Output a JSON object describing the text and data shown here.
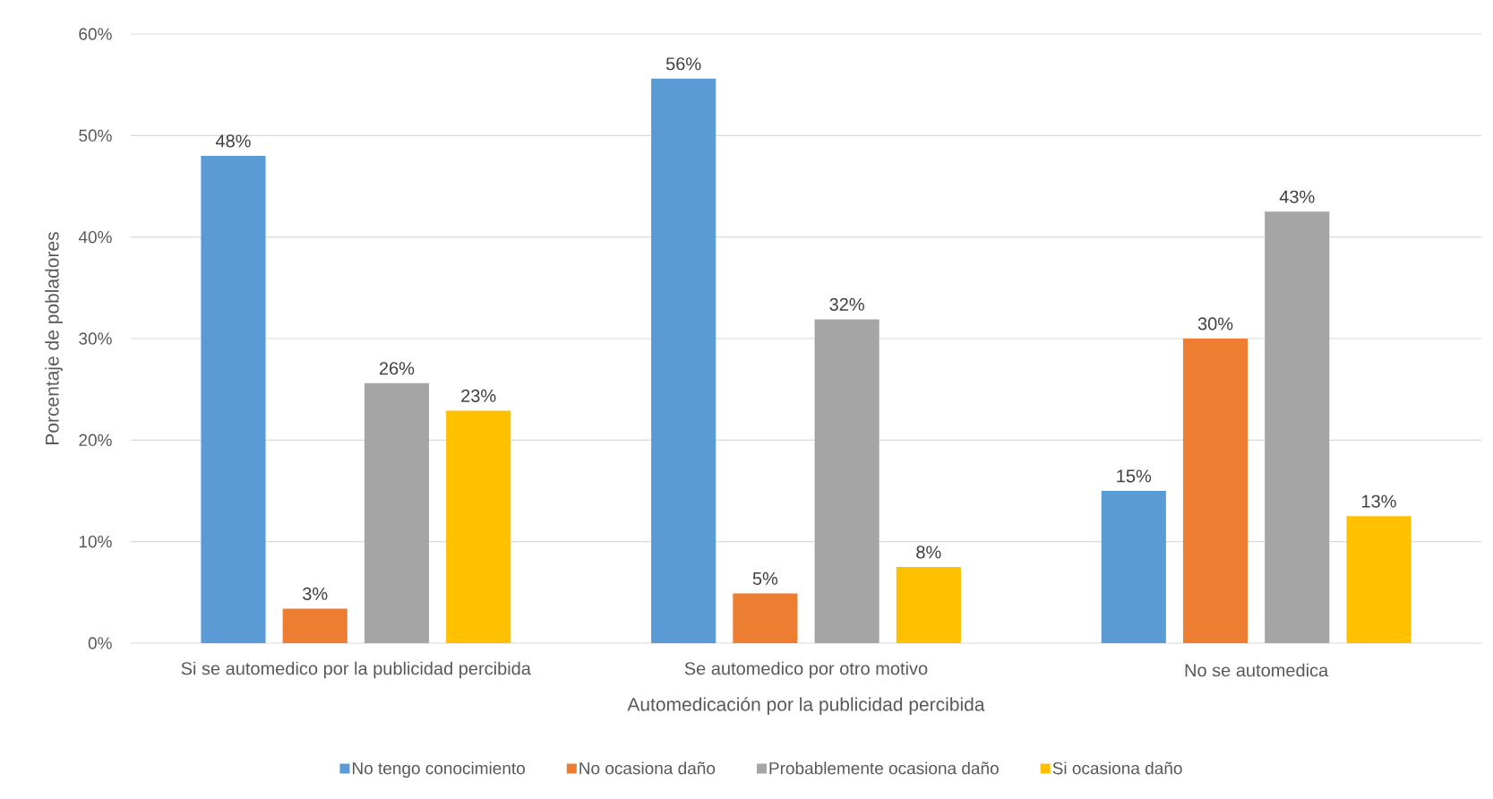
{
  "chart_data": {
    "type": "bar",
    "xlabel": "Automedicación por la publicidad percibida",
    "ylabel": "Porcentaje de pobladores",
    "categories": [
      "Si se automedico por la publicidad percibida",
      "Se automedico por otro motivo",
      "No se automedica"
    ],
    "series": [
      {
        "name": "No tengo conocimiento",
        "color": "#5b9bd5",
        "values": [
          48.0,
          55.6,
          15.0
        ],
        "value_labels": [
          "48%",
          "56%",
          "15%"
        ]
      },
      {
        "name": "No ocasiona daño",
        "color": "#ed7d31",
        "values": [
          3.4,
          4.9,
          30.0
        ],
        "value_labels": [
          "3%",
          "5%",
          "30%"
        ]
      },
      {
        "name": "Probablemente ocasiona daño",
        "color": "#a5a5a5",
        "values": [
          25.6,
          31.9,
          42.5
        ],
        "value_labels": [
          "26%",
          "32%",
          "43%"
        ]
      },
      {
        "name": "Si ocasiona daño",
        "color": "#ffc000",
        "values": [
          22.9,
          7.5,
          12.5
        ],
        "value_labels": [
          "23%",
          "8%",
          "13%"
        ]
      }
    ],
    "ylim": [
      0,
      60
    ],
    "yticks": [
      {
        "value": 0,
        "label": "0%"
      },
      {
        "value": 10,
        "label": "10%"
      },
      {
        "value": 20,
        "label": "20%"
      },
      {
        "value": 30,
        "label": "30%"
      },
      {
        "value": 40,
        "label": "40%"
      },
      {
        "value": 50,
        "label": "50%"
      },
      {
        "value": 60,
        "label": "60%"
      }
    ],
    "grid": "y",
    "legend": "bottom"
  }
}
